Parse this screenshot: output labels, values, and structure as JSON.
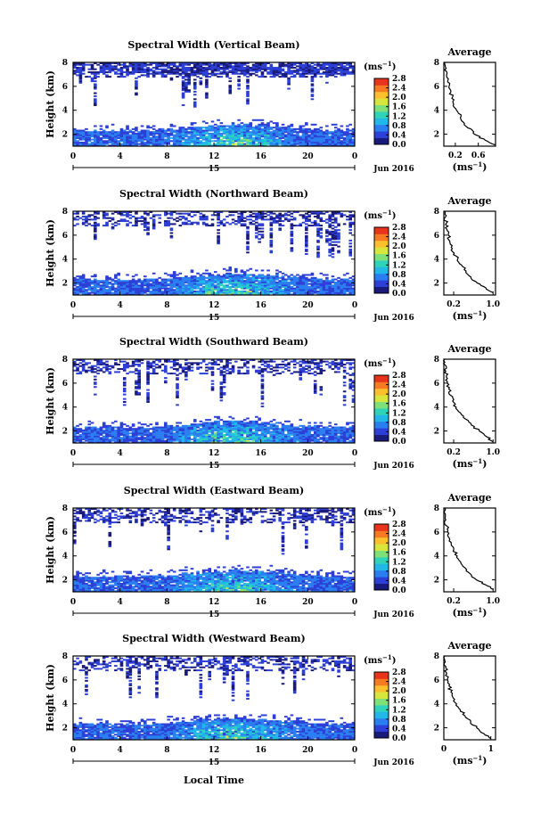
{
  "figure": {
    "bottom_xlabel": "Local Time",
    "colorbar_unit": "(ms",
    "colorbar_unit_exp": "−1",
    "avg_title": "Average",
    "avg_xlabel": "(ms",
    "avg_xlabel_exp": "−1",
    "ylabel": "Height (km)",
    "date_label": "Jun 2016",
    "day_label": "15"
  },
  "chart_data": [
    {
      "type": "heatmap",
      "title": "Spectral Width (Vertical Beam)",
      "xlim": [
        0,
        24
      ],
      "ylim": [
        1,
        8
      ],
      "xticks": [
        "0",
        "4",
        "8",
        "12",
        "16",
        "20",
        "0"
      ],
      "yticks": [
        "2",
        "4",
        "6",
        "8"
      ],
      "colorbar": {
        "min": 0,
        "max": 2.8,
        "ticks": [
          "0.0",
          "0.4",
          "0.8",
          "1.2",
          "1.6",
          "2.0",
          "2.4",
          "2.8"
        ],
        "colors": [
          "#1a1a7a",
          "#2c3fd6",
          "#2a7ef0",
          "#21b8e8",
          "#2fd3b8",
          "#7fe07a",
          "#d6e63c",
          "#fbc02c",
          "#f57a22",
          "#e8341c"
        ]
      },
      "avg": {
        "xlim": [
          0,
          0.9
        ],
        "xticks": [
          "0.2",
          "0.6"
        ],
        "xtick_vals": [
          0.2,
          0.6
        ],
        "ylim": [
          1,
          8
        ],
        "yticks": [
          "2",
          "4",
          "6",
          "8"
        ],
        "profile": [
          [
            0.9,
            1.1
          ],
          [
            0.72,
            1.5
          ],
          [
            0.58,
            1.9
          ],
          [
            0.5,
            2.3
          ],
          [
            0.4,
            2.6
          ],
          [
            0.34,
            3.0
          ],
          [
            0.3,
            3.5
          ],
          [
            0.22,
            4.0
          ],
          [
            0.17,
            4.5
          ],
          [
            0.14,
            5.0
          ],
          [
            0.12,
            5.5
          ],
          [
            0.09,
            6.0
          ],
          [
            0.07,
            6.5
          ],
          [
            0.05,
            7.0
          ],
          [
            0.04,
            7.5
          ],
          [
            0.02,
            8.0
          ]
        ]
      }
    },
    {
      "type": "heatmap",
      "title": "Spectral Width (Northward Beam)",
      "xlim": [
        0,
        24
      ],
      "ylim": [
        1,
        8
      ],
      "xticks": [
        "0",
        "4",
        "8",
        "12",
        "16",
        "20",
        "0"
      ],
      "yticks": [
        "2",
        "4",
        "6",
        "8"
      ],
      "colorbar": {
        "min": 0,
        "max": 2.8,
        "ticks": [
          "0.0",
          "0.4",
          "0.8",
          "1.2",
          "1.6",
          "2.0",
          "2.4",
          "2.8"
        ],
        "colors": [
          "#1a1a7a",
          "#2c3fd6",
          "#2a7ef0",
          "#21b8e8",
          "#2fd3b8",
          "#7fe07a",
          "#d6e63c",
          "#fbc02c",
          "#f57a22",
          "#e8341c"
        ]
      },
      "avg": {
        "xlim": [
          0,
          1.05
        ],
        "xticks": [
          "0.2",
          "1.0"
        ],
        "xtick_vals": [
          0.2,
          1.0
        ],
        "ylim": [
          1,
          8
        ],
        "yticks": [
          "2",
          "4",
          "6",
          "8"
        ],
        "profile": [
          [
            1.0,
            1.2
          ],
          [
            0.85,
            1.6
          ],
          [
            0.68,
            2.0
          ],
          [
            0.55,
            2.5
          ],
          [
            0.45,
            3.0
          ],
          [
            0.36,
            3.5
          ],
          [
            0.28,
            4.0
          ],
          [
            0.21,
            4.5
          ],
          [
            0.15,
            5.0
          ],
          [
            0.12,
            5.5
          ],
          [
            0.09,
            6.0
          ],
          [
            0.06,
            6.5
          ],
          [
            0.05,
            7.0
          ],
          [
            0.03,
            7.5
          ],
          [
            0.02,
            8.0
          ]
        ]
      }
    },
    {
      "type": "heatmap",
      "title": "Spectral Width (Southward Beam)",
      "xlim": [
        0,
        24
      ],
      "ylim": [
        1,
        8
      ],
      "xticks": [
        "0",
        "4",
        "8",
        "12",
        "16",
        "20",
        "0"
      ],
      "yticks": [
        "2",
        "4",
        "6",
        "8"
      ],
      "colorbar": {
        "min": 0,
        "max": 2.8,
        "ticks": [
          "0.0",
          "0.4",
          "0.8",
          "1.2",
          "1.6",
          "2.0",
          "2.4",
          "2.8"
        ],
        "colors": [
          "#1a1a7a",
          "#2c3fd6",
          "#2a7ef0",
          "#21b8e8",
          "#2fd3b8",
          "#7fe07a",
          "#d6e63c",
          "#fbc02c",
          "#f57a22",
          "#e8341c"
        ]
      },
      "avg": {
        "xlim": [
          0,
          1.05
        ],
        "xticks": [
          "0.2",
          "1.0"
        ],
        "xtick_vals": [
          0.2,
          1.0
        ],
        "ylim": [
          1,
          8
        ],
        "yticks": [
          "2",
          "4",
          "6",
          "8"
        ],
        "profile": [
          [
            1.0,
            1.1
          ],
          [
            0.88,
            1.5
          ],
          [
            0.72,
            2.0
          ],
          [
            0.56,
            2.5
          ],
          [
            0.44,
            3.0
          ],
          [
            0.34,
            3.5
          ],
          [
            0.25,
            4.0
          ],
          [
            0.18,
            4.5
          ],
          [
            0.13,
            5.0
          ],
          [
            0.1,
            5.5
          ],
          [
            0.07,
            6.0
          ],
          [
            0.05,
            6.5
          ],
          [
            0.04,
            7.0
          ],
          [
            0.03,
            7.5
          ],
          [
            0.02,
            8.0
          ]
        ]
      }
    },
    {
      "type": "heatmap",
      "title": "Spectral Width (Eastward Beam)",
      "xlim": [
        0,
        24
      ],
      "ylim": [
        1,
        8
      ],
      "xticks": [
        "0",
        "4",
        "8",
        "12",
        "16",
        "20",
        "0"
      ],
      "yticks": [
        "2",
        "4",
        "6",
        "8"
      ],
      "colorbar": {
        "min": 0,
        "max": 2.8,
        "ticks": [
          "0.0",
          "0.4",
          "0.8",
          "1.2",
          "1.6",
          "2.0",
          "2.4",
          "2.8"
        ],
        "colors": [
          "#1a1a7a",
          "#2c3fd6",
          "#2a7ef0",
          "#21b8e8",
          "#2fd3b8",
          "#7fe07a",
          "#d6e63c",
          "#fbc02c",
          "#f57a22",
          "#e8341c"
        ]
      },
      "avg": {
        "xlim": [
          0,
          1.05
        ],
        "xticks": [
          "0.2",
          "1.0"
        ],
        "xtick_vals": [
          0.2,
          1.0
        ],
        "ylim": [
          1,
          8
        ],
        "yticks": [
          "2",
          "4",
          "6",
          "8"
        ],
        "profile": [
          [
            1.0,
            1.2
          ],
          [
            0.84,
            1.6
          ],
          [
            0.66,
            2.0
          ],
          [
            0.54,
            2.5
          ],
          [
            0.43,
            3.0
          ],
          [
            0.34,
            3.5
          ],
          [
            0.27,
            4.0
          ],
          [
            0.2,
            4.5
          ],
          [
            0.15,
            5.0
          ],
          [
            0.11,
            5.5
          ],
          [
            0.08,
            6.0
          ],
          [
            0.06,
            6.5
          ],
          [
            0.04,
            7.0
          ],
          [
            0.03,
            7.5
          ],
          [
            0.02,
            8.0
          ]
        ]
      }
    },
    {
      "type": "heatmap",
      "title": "Spectral Width (Westward Beam)",
      "xlim": [
        0,
        24
      ],
      "ylim": [
        1,
        8
      ],
      "xticks": [
        "0",
        "4",
        "8",
        "12",
        "16",
        "20",
        "0"
      ],
      "yticks": [
        "2",
        "4",
        "6",
        "8"
      ],
      "colorbar": {
        "min": 0,
        "max": 2.8,
        "ticks": [
          "0.0",
          "0.4",
          "0.8",
          "1.2",
          "1.6",
          "2.0",
          "2.4",
          "2.8"
        ],
        "colors": [
          "#1a1a7a",
          "#2c3fd6",
          "#2a7ef0",
          "#21b8e8",
          "#2fd3b8",
          "#7fe07a",
          "#d6e63c",
          "#fbc02c",
          "#f57a22",
          "#e8341c"
        ]
      },
      "avg": {
        "xlim": [
          0,
          1.1
        ],
        "xticks": [
          "0",
          "1"
        ],
        "xtick_vals": [
          0,
          1
        ],
        "ylim": [
          1,
          8
        ],
        "yticks": [
          "2",
          "4",
          "6",
          "8"
        ],
        "profile": [
          [
            1.0,
            1.1
          ],
          [
            0.86,
            1.5
          ],
          [
            0.7,
            2.0
          ],
          [
            0.57,
            2.5
          ],
          [
            0.45,
            3.0
          ],
          [
            0.35,
            3.5
          ],
          [
            0.27,
            4.0
          ],
          [
            0.2,
            4.5
          ],
          [
            0.15,
            5.0
          ],
          [
            0.11,
            5.5
          ],
          [
            0.08,
            6.0
          ],
          [
            0.06,
            6.5
          ],
          [
            0.04,
            7.0
          ],
          [
            0.03,
            7.5
          ],
          [
            0.02,
            8.0
          ]
        ]
      }
    }
  ]
}
